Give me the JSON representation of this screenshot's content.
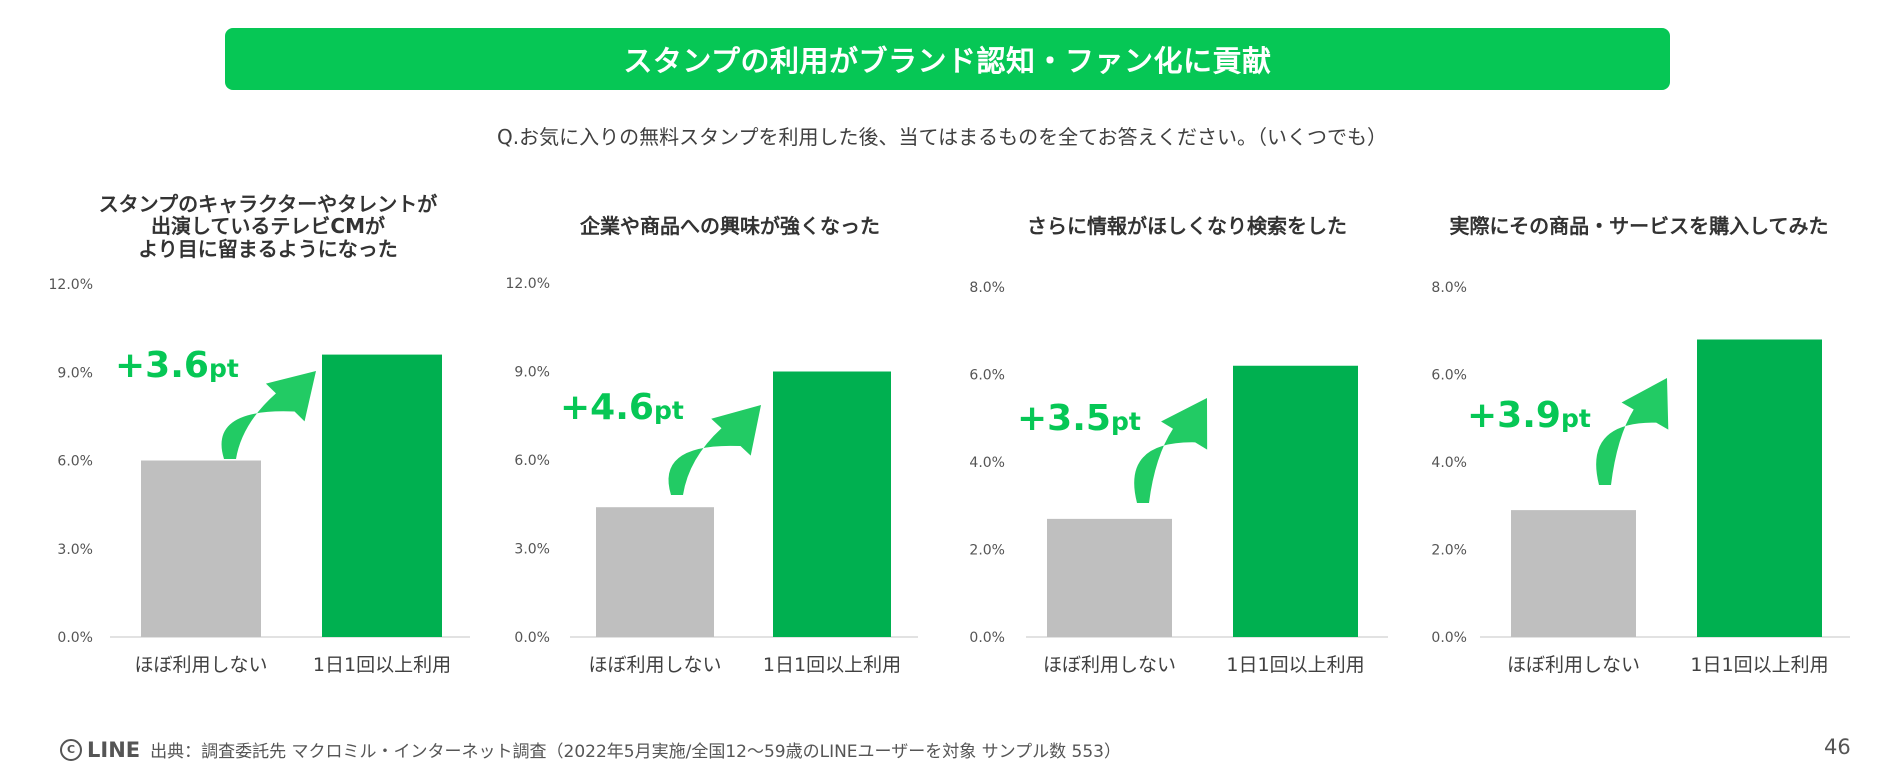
{
  "header": {
    "title": "スタンプの利用がブランド認知・ファン化に貢献"
  },
  "question": "Q.お気に入りの無料スタンプを利用した後、当てはまるものを全てお答えください。（いくつでも）",
  "footer": {
    "logo": "LINE",
    "logo_mark": "C",
    "source": "出典：調査委託先 マクロミル・インターネット調査（2022年5月実施/全国12〜59歳のLINEユーザーを対象 サンプル数 553）"
  },
  "page_number": "46",
  "colors": {
    "accent": "#06C755",
    "bar_low": "#BFBFBF",
    "bar_high": "#00B050",
    "arrow": "#22CB64",
    "uplift_text": "#06C755"
  },
  "chart_data": [
    {
      "type": "bar",
      "title": "スタンプのキャラクターやタレントが\n出演しているテレビCMが\nより目に留まるようになった",
      "categories": [
        "ほぼ利用しない",
        "1日1回以上利用"
      ],
      "values": [
        6.0,
        9.6
      ],
      "ylim": [
        0,
        12
      ],
      "yticks": [
        0,
        3,
        6,
        9,
        12
      ],
      "ytick_labels": [
        "0.0%",
        "3.0%",
        "6.0%",
        "9.0%",
        "12.0%"
      ],
      "uplift_value": "+3.6",
      "uplift_unit": "pt"
    },
    {
      "type": "bar",
      "title": "企業や商品への興味が強くなった",
      "categories": [
        "ほぼ利用しない",
        "1日1回以上利用"
      ],
      "values": [
        4.4,
        9.0
      ],
      "ylim": [
        0,
        12
      ],
      "yticks": [
        0,
        3,
        6,
        9,
        12
      ],
      "ytick_labels": [
        "0.0%",
        "3.0%",
        "6.0%",
        "9.0%",
        "12.0%"
      ],
      "uplift_value": "+4.6",
      "uplift_unit": "pt"
    },
    {
      "type": "bar",
      "title": "さらに情報がほしくなり検索をした",
      "categories": [
        "ほぼ利用しない",
        "1日1回以上利用"
      ],
      "values": [
        2.7,
        6.2
      ],
      "ylim": [
        0,
        8
      ],
      "yticks": [
        0,
        2,
        4,
        6,
        8
      ],
      "ytick_labels": [
        "0.0%",
        "2.0%",
        "4.0%",
        "6.0%",
        "8.0%"
      ],
      "uplift_value": "+3.5",
      "uplift_unit": "pt"
    },
    {
      "type": "bar",
      "title": "実際にその商品・サービスを購入してみた",
      "categories": [
        "ほぼ利用しない",
        "1日1回以上利用"
      ],
      "values": [
        2.9,
        6.8
      ],
      "ylim": [
        0,
        8
      ],
      "yticks": [
        0,
        2,
        4,
        6,
        8
      ],
      "ytick_labels": [
        "0.0%",
        "2.0%",
        "4.0%",
        "6.0%",
        "8.0%"
      ],
      "uplift_value": "+3.9",
      "uplift_unit": "pt"
    }
  ]
}
